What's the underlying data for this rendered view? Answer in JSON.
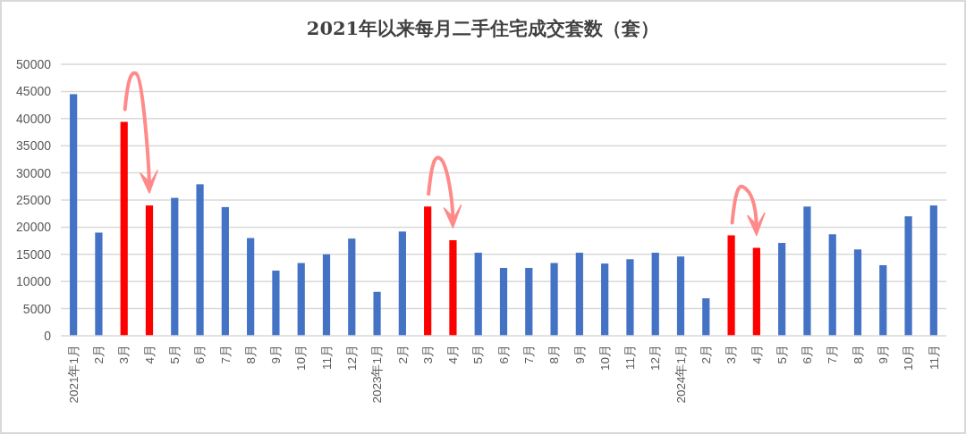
{
  "chart_data": {
    "type": "bar",
    "title": "2021年以来每月二手住宅成交套数（套）",
    "categories": [
      "2021年1月",
      "2月",
      "3月",
      "4月",
      "5月",
      "6月",
      "7月",
      "8月",
      "9月",
      "10月",
      "11月",
      "12月",
      "2023年1月",
      "2月",
      "3月",
      "4月",
      "5月",
      "6月",
      "7月",
      "8月",
      "9月",
      "10月",
      "11月",
      "12月",
      "2024年1月",
      "2月",
      "3月",
      "4月",
      "5月",
      "6月",
      "7月",
      "8月",
      "9月",
      "10月",
      "11月"
    ],
    "values": [
      44500,
      19000,
      39400,
      24000,
      25400,
      27900,
      23700,
      18000,
      12000,
      13400,
      15000,
      17900,
      8100,
      19200,
      23800,
      17600,
      15300,
      12500,
      12500,
      13400,
      15300,
      13300,
      14100,
      15300,
      14600,
      6900,
      18500,
      16200,
      17100,
      23800,
      18700,
      15900,
      13000,
      22000,
      24000
    ],
    "colors": [
      "#4472c4",
      "#4472c4",
      "#ff0000",
      "#ff0000",
      "#4472c4",
      "#4472c4",
      "#4472c4",
      "#4472c4",
      "#4472c4",
      "#4472c4",
      "#4472c4",
      "#4472c4",
      "#4472c4",
      "#4472c4",
      "#ff0000",
      "#ff0000",
      "#4472c4",
      "#4472c4",
      "#4472c4",
      "#4472c4",
      "#4472c4",
      "#4472c4",
      "#4472c4",
      "#4472c4",
      "#4472c4",
      "#4472c4",
      "#ff0000",
      "#ff0000",
      "#4472c4",
      "#4472c4",
      "#4472c4",
      "#4472c4",
      "#4472c4",
      "#4472c4",
      "#4472c4"
    ],
    "ylim": [
      0,
      50000
    ],
    "yticks": [
      0,
      5000,
      10000,
      15000,
      20000,
      25000,
      30000,
      35000,
      40000,
      45000,
      50000
    ],
    "grid": "y"
  }
}
